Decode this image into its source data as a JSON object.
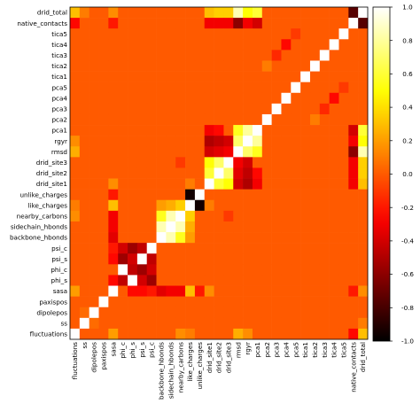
{
  "chart_data": {
    "type": "heatmap",
    "variables": [
      "fluctuations",
      "ss",
      "dipolepos",
      "paxispos",
      "sasa",
      "phi_s",
      "phi_c",
      "psi_s",
      "psi_c",
      "backbone_hbonds",
      "sidechain_hbonds",
      "nearby_carbons",
      "like_charges",
      "unlike_charges",
      "drid_site1",
      "drid_site2",
      "drid_site3",
      "rmsd",
      "rgyr",
      "pca1",
      "pca2",
      "pca3",
      "pca4",
      "pca5",
      "tica1",
      "tica2",
      "tica3",
      "tica4",
      "tica5",
      "native_contacts",
      "drid_total"
    ],
    "x_labels": [
      "fluctuations",
      "ss",
      "dipolepos",
      "paxispos",
      "sasa",
      "phi_c",
      "phi_s",
      "psi_s",
      "psi_c",
      "backbone_hbonds",
      "sidechain_hbonds",
      "nearby_carbons",
      "like_charges",
      "unlike_charges",
      "drid_site1",
      "drid_site2",
      "drid_site3",
      "rmsd",
      "rgyr",
      "pca1",
      "pca2",
      "pca3",
      "pca4",
      "pca5",
      "tica1",
      "tica2",
      "tica3",
      "tica4",
      "tica5",
      "native_contacts",
      "drid_total"
    ],
    "y_labels_top_to_bottom": [
      "drid_total",
      "native_contacts",
      "tica5",
      "tica4",
      "tica3",
      "tica2",
      "tica1",
      "pca5",
      "pca4",
      "pca3",
      "pca2",
      "pca1",
      "rgyr",
      "rmsd",
      "drid_site3",
      "drid_site2",
      "drid_site1",
      "unlike_charges",
      "like_charges",
      "nearby_carbons",
      "sidechain_hbonds",
      "backbone_hbonds",
      "psi_c",
      "psi_s",
      "phi_c",
      "phi_s",
      "sasa",
      "paxispos",
      "dipolepos",
      "ss",
      "fluctuations"
    ],
    "colorscale": "hot",
    "vmin": -1.0,
    "vmax": 1.0,
    "colorbar_ticks": [
      "1.0",
      "0.8",
      "0.6",
      "0.4",
      "0.2",
      "0.0",
      "-0.2",
      "-0.4",
      "-0.6",
      "-0.8",
      "-1.0"
    ],
    "default_value": 0.0,
    "overrides": [
      [
        "drid_total",
        "native_contacts",
        -0.75
      ],
      [
        "drid_total",
        "rmsd",
        0.85
      ],
      [
        "drid_total",
        "rgyr",
        0.5
      ],
      [
        "drid_total",
        "pca1",
        0.6
      ],
      [
        "drid_total",
        "drid_site1",
        0.3
      ],
      [
        "drid_total",
        "drid_site2",
        0.35
      ],
      [
        "drid_total",
        "drid_site3",
        0.35
      ],
      [
        "drid_total",
        "fluctuations",
        0.3
      ],
      [
        "drid_total",
        "ss",
        0.1
      ],
      [
        "drid_total",
        "sasa",
        0.15
      ],
      [
        "native_contacts",
        "rmsd",
        -0.6
      ],
      [
        "native_contacts",
        "rgyr",
        -0.3
      ],
      [
        "native_contacts",
        "pca1",
        -0.4
      ],
      [
        "native_contacts",
        "drid_site1",
        -0.3
      ],
      [
        "native_contacts",
        "drid_site2",
        -0.3
      ],
      [
        "native_contacts",
        "drid_site3",
        -0.3
      ],
      [
        "native_contacts",
        "fluctuations",
        -0.25
      ],
      [
        "native_contacts",
        "sasa",
        -0.2
      ],
      [
        "drid_site1",
        "drid_site2",
        0.6
      ],
      [
        "drid_site1",
        "drid_site3",
        0.5
      ],
      [
        "drid_site2",
        "drid_site3",
        0.7
      ],
      [
        "drid_site1",
        "rmsd",
        -0.4
      ],
      [
        "drid_site2",
        "rmsd",
        -0.35
      ],
      [
        "drid_site3",
        "rmsd",
        -0.3
      ],
      [
        "drid_site1",
        "rgyr",
        -0.5
      ],
      [
        "drid_site2",
        "rgyr",
        -0.45
      ],
      [
        "drid_site3",
        "rgyr",
        -0.4
      ],
      [
        "drid_site1",
        "pca1",
        -0.3
      ],
      [
        "drid_site2",
        "pca1",
        -0.25
      ],
      [
        "rmsd",
        "rgyr",
        0.7
      ],
      [
        "rmsd",
        "pca1",
        0.55
      ],
      [
        "rgyr",
        "pca1",
        0.8
      ],
      [
        "backbone_hbonds",
        "sidechain_hbonds",
        0.85
      ],
      [
        "backbone_hbonds",
        "nearby_carbons",
        0.55
      ],
      [
        "sidechain_hbonds",
        "nearby_carbons",
        0.85
      ],
      [
        "backbone_hbonds",
        "like_charges",
        0.2
      ],
      [
        "sidechain_hbonds",
        "like_charges",
        0.25
      ],
      [
        "nearby_carbons",
        "like_charges",
        0.35
      ],
      [
        "like_charges",
        "unlike_charges",
        -0.95
      ],
      [
        "sasa",
        "backbone_hbonds",
        -0.35
      ],
      [
        "sasa",
        "sidechain_hbonds",
        -0.3
      ],
      [
        "sasa",
        "nearby_carbons",
        -0.3
      ],
      [
        "sasa",
        "like_charges",
        0.3
      ],
      [
        "sasa",
        "unlike_charges",
        -0.2
      ],
      [
        "phi_s",
        "psi_s",
        -0.4
      ],
      [
        "phi_s",
        "psi_c",
        -0.55
      ],
      [
        "phi_c",
        "psi_s",
        -0.55
      ],
      [
        "phi_c",
        "psi_c",
        -0.4
      ],
      [
        "phi_s",
        "phi_c",
        -0.45
      ],
      [
        "psi_s",
        "psi_c",
        -0.45
      ],
      [
        "sasa",
        "phi_s",
        -0.25
      ],
      [
        "sasa",
        "psi_s",
        -0.25
      ],
      [
        "sasa",
        "psi_c",
        -0.2
      ],
      [
        "fluctuations",
        "sasa",
        0.2
      ],
      [
        "fluctuations",
        "nearby_carbons",
        0.15
      ],
      [
        "fluctuations",
        "like_charges",
        0.1
      ],
      [
        "ss",
        "dipolepos",
        0.05
      ],
      [
        "drid_site1",
        "like_charges",
        0.1
      ],
      [
        "drid_site1",
        "sasa",
        0.15
      ],
      [
        "drid_site3",
        "nearby_carbons",
        -0.1
      ],
      [
        "tica4",
        "pca4",
        -0.25
      ],
      [
        "tica3",
        "pca3",
        -0.15
      ],
      [
        "tica2",
        "pca2",
        0.1
      ],
      [
        "tica5",
        "pca5",
        -0.1
      ],
      [
        "fluctuations",
        "rmsd",
        0.25
      ],
      [
        "fluctuations",
        "rgyr",
        0.15
      ]
    ]
  }
}
